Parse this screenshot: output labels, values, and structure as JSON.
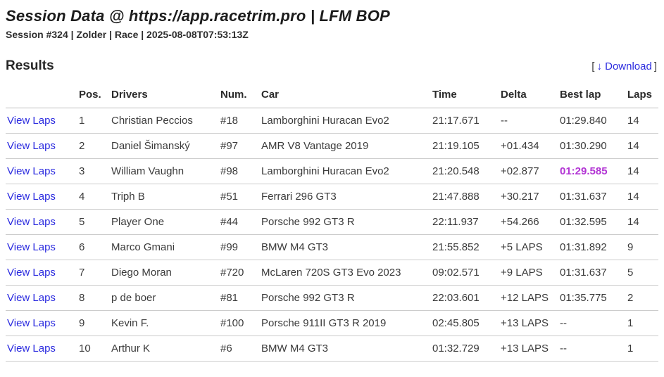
{
  "header": {
    "title": "Session Data @ https://app.racetrim.pro | LFM BOP",
    "subtitle": "Session #324 | Zolder | Race | 2025-08-08T07:53:13Z"
  },
  "results": {
    "heading": "Results",
    "download": {
      "bracket_open": "[",
      "arrow_icon": "↓",
      "label": "Download",
      "bracket_close": "]"
    }
  },
  "colors": {
    "link_blue": "#2b2bdf",
    "fastest_lap_purple": "#b234d4",
    "row_border": "#cccccc"
  },
  "table": {
    "view_laps_label": "View Laps",
    "columns": {
      "view": "",
      "pos": "Pos.",
      "driver": "Drivers",
      "num": "Num.",
      "car": "Car",
      "time": "Time",
      "delta": "Delta",
      "best_lap": "Best lap",
      "laps": "Laps"
    },
    "rows": [
      {
        "pos": "1",
        "driver": "Christian Peccios",
        "num": "#18",
        "car": "Lamborghini Huracan Evo2",
        "time": "21:17.671",
        "delta": "--",
        "best_lap": "01:29.840",
        "laps": "14",
        "fastest": false
      },
      {
        "pos": "2",
        "driver": "Daniel Šimanský",
        "num": "#97",
        "car": "AMR V8 Vantage 2019",
        "time": "21:19.105",
        "delta": "+01.434",
        "best_lap": "01:30.290",
        "laps": "14",
        "fastest": false
      },
      {
        "pos": "3",
        "driver": "William Vaughn",
        "num": "#98",
        "car": "Lamborghini Huracan Evo2",
        "time": "21:20.548",
        "delta": "+02.877",
        "best_lap": "01:29.585",
        "laps": "14",
        "fastest": true
      },
      {
        "pos": "4",
        "driver": "Triph B",
        "num": "#51",
        "car": "Ferrari 296 GT3",
        "time": "21:47.888",
        "delta": "+30.217",
        "best_lap": "01:31.637",
        "laps": "14",
        "fastest": false
      },
      {
        "pos": "5",
        "driver": "Player One",
        "num": "#44",
        "car": "Porsche 992 GT3 R",
        "time": "22:11.937",
        "delta": "+54.266",
        "best_lap": "01:32.595",
        "laps": "14",
        "fastest": false
      },
      {
        "pos": "6",
        "driver": "Marco Gmani",
        "num": "#99",
        "car": "BMW M4 GT3",
        "time": "21:55.852",
        "delta": "+5 LAPS",
        "best_lap": "01:31.892",
        "laps": "9",
        "fastest": false
      },
      {
        "pos": "7",
        "driver": "Diego Moran",
        "num": "#720",
        "car": "McLaren 720S GT3 Evo 2023",
        "time": "09:02.571",
        "delta": "+9 LAPS",
        "best_lap": "01:31.637",
        "laps": "5",
        "fastest": false
      },
      {
        "pos": "8",
        "driver": "p de boer",
        "num": "#81",
        "car": "Porsche 992 GT3 R",
        "time": "22:03.601",
        "delta": "+12 LAPS",
        "best_lap": "01:35.775",
        "laps": "2",
        "fastest": false
      },
      {
        "pos": "9",
        "driver": "Kevin F.",
        "num": "#100",
        "car": "Porsche 911II GT3 R 2019",
        "time": "02:45.805",
        "delta": "+13 LAPS",
        "best_lap": "--",
        "laps": "1",
        "fastest": false
      },
      {
        "pos": "10",
        "driver": "Arthur K",
        "num": "#6",
        "car": "BMW M4 GT3",
        "time": "01:32.729",
        "delta": "+13 LAPS",
        "best_lap": "--",
        "laps": "1",
        "fastest": false
      }
    ]
  }
}
